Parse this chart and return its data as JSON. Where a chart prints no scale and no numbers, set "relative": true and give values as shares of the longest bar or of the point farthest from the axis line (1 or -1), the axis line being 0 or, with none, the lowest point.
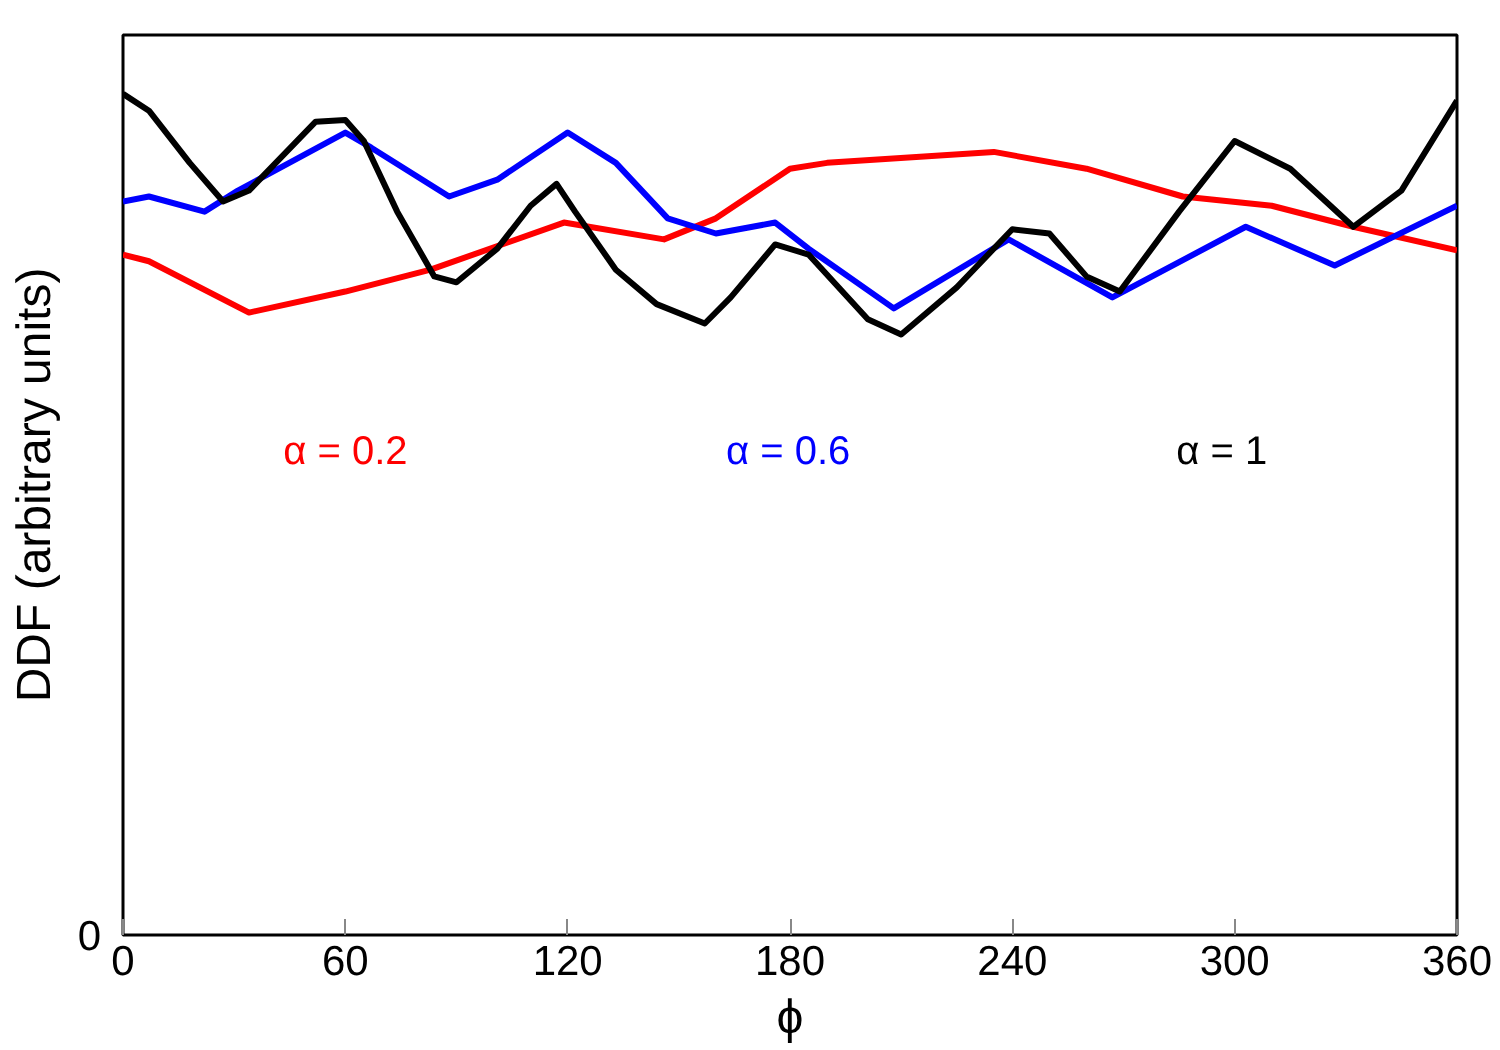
{
  "chart_data": {
    "type": "line",
    "relative": true,
    "xlabel": "ϕ",
    "ylabel": "DDF (arbitrary units)",
    "xlim": [
      0,
      360
    ],
    "xticks": [
      0,
      60,
      120,
      180,
      240,
      300,
      360
    ],
    "annotations": [
      "0"
    ],
    "grid": false,
    "legend": false,
    "series": [
      {
        "name": "α = 0.2",
        "color": "#ff0000",
        "x": [
          0,
          7,
          34,
          60,
          83,
          119,
          146,
          160,
          180,
          190,
          235,
          260,
          286,
          310,
          332,
          360
        ],
        "values": [
          0.809,
          0.801,
          0.74,
          0.765,
          0.791,
          0.847,
          0.827,
          0.852,
          0.911,
          0.918,
          0.931,
          0.911,
          0.878,
          0.867,
          0.842,
          0.814
        ]
      },
      {
        "name": "α = 0.6",
        "color": "#0000ff",
        "x": [
          0,
          7,
          22,
          31,
          60,
          67,
          88,
          101,
          120,
          133,
          147,
          160,
          176,
          185,
          208,
          239,
          267,
          303,
          327,
          360
        ],
        "values": [
          0.872,
          0.878,
          0.86,
          0.885,
          0.954,
          0.936,
          0.878,
          0.898,
          0.954,
          0.918,
          0.852,
          0.834,
          0.847,
          0.816,
          0.745,
          0.827,
          0.758,
          0.842,
          0.796,
          0.867
        ]
      },
      {
        "name": "α = 1",
        "color": "#000000",
        "x": [
          0,
          7,
          18,
          27,
          34,
          52,
          60,
          65,
          74,
          84,
          90,
          101,
          110,
          117,
          122,
          133,
          144,
          157,
          164,
          176,
          185,
          201,
          210,
          225,
          240,
          250,
          260,
          269,
          285,
          300,
          315,
          332,
          345,
          360
        ],
        "values": [
          1.0,
          0.98,
          0.918,
          0.872,
          0.885,
          0.967,
          0.969,
          0.944,
          0.86,
          0.783,
          0.776,
          0.816,
          0.867,
          0.893,
          0.86,
          0.791,
          0.75,
          0.727,
          0.758,
          0.821,
          0.809,
          0.732,
          0.714,
          0.77,
          0.839,
          0.834,
          0.783,
          0.765,
          0.86,
          0.944,
          0.911,
          0.842,
          0.885,
          0.992
        ]
      }
    ]
  }
}
